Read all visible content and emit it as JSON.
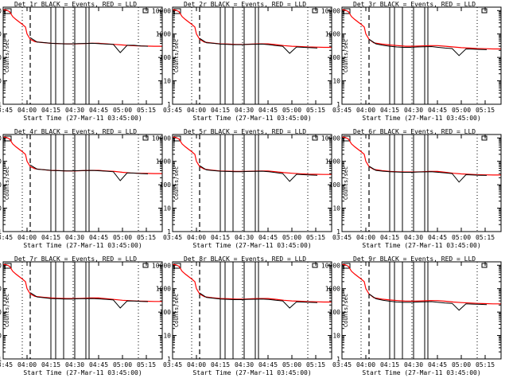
{
  "page": {
    "background": "#ffffff",
    "axis_color": "#000000",
    "events_color": "#000000",
    "lld_color": "#ff0000"
  },
  "common": {
    "ylabel": "Counts/sec",
    "xlabel": "Start Time (27-Mar-11 03:45:00)",
    "x_tick_labels": [
      "03:45",
      "04:00",
      "04:15",
      "04:30",
      "04:45",
      "05:00",
      "05:15"
    ],
    "y_tick_labels": [
      "1",
      "10",
      "100",
      "1000",
      "10000"
    ],
    "x_ticks_min": [
      0,
      15,
      30,
      45,
      60,
      75,
      90
    ],
    "y_ticks": [
      1,
      10,
      100,
      1000,
      10000
    ],
    "xlim_min": [
      0,
      100
    ],
    "ylim": [
      1,
      14000
    ],
    "y_scale": "log",
    "time_minutes": [
      0,
      2,
      4,
      6,
      8,
      10,
      12,
      14,
      15,
      17,
      20,
      25,
      30,
      35,
      40,
      45,
      50,
      55,
      60,
      65,
      70,
      75,
      80,
      85,
      90,
      95,
      100
    ],
    "lld_curve": [
      11000,
      10500,
      9000,
      5500,
      4200,
      3300,
      2600,
      2000,
      1000,
      600,
      470,
      430,
      400,
      390,
      380,
      380,
      390,
      400,
      400,
      380,
      360,
      340,
      320,
      310,
      305,
      300,
      300
    ],
    "vertical_lines_min": {
      "dotted": [
        12,
        44,
        85
      ],
      "dashed": [
        17
      ],
      "solid": [
        30,
        33,
        38,
        45,
        52,
        54
      ]
    }
  },
  "chart_data": [
    {
      "type": "line",
      "title": "Det 1r BLACK = Events, RED = LLD",
      "series": [
        {
          "name": "Events",
          "start_min": 17,
          "values": [
            700,
            450,
            430,
            400,
            390,
            380,
            380,
            390,
            395,
            400,
            385,
            370,
            360,
            160,
            330,
            330,
            310,
            300
          ]
        },
        {
          "name": "LLD",
          "start_min": 0,
          "values": [
            11000,
            10500,
            9000,
            5500,
            4200,
            3300,
            2600,
            2000,
            1000,
            600,
            470,
            430,
            400,
            390,
            380,
            380,
            390,
            400,
            400,
            380,
            360,
            340,
            320,
            310,
            305,
            300,
            300
          ]
        }
      ]
    },
    {
      "type": "line",
      "title": "Det 2r BLACK = Events, RED = LLD",
      "series": [
        {
          "name": "Events",
          "start_min": 17,
          "values": [
            650,
            420,
            400,
            370,
            360,
            350,
            350,
            360,
            365,
            370,
            350,
            320,
            300,
            150,
            280,
            270,
            260,
            250
          ]
        },
        {
          "name": "LLD",
          "start_min": 0,
          "values": [
            11000,
            10500,
            9000,
            5500,
            4200,
            3300,
            2600,
            2000,
            1000,
            600,
            450,
            410,
            380,
            370,
            360,
            360,
            370,
            380,
            380,
            350,
            320,
            300,
            290,
            280,
            275,
            270,
            270
          ]
        }
      ]
    },
    {
      "type": "line",
      "title": "Det 3r BLACK = Events, RED = LLD",
      "series": [
        {
          "name": "Events",
          "start_min": 17,
          "values": [
            600,
            380,
            330,
            300,
            280,
            270,
            270,
            280,
            285,
            290,
            270,
            250,
            240,
            120,
            230,
            225,
            220,
            215
          ]
        },
        {
          "name": "LLD",
          "start_min": 0,
          "values": [
            11000,
            10500,
            9000,
            5500,
            4200,
            3300,
            2600,
            2000,
            1000,
            600,
            420,
            370,
            340,
            320,
            300,
            300,
            310,
            320,
            320,
            300,
            280,
            260,
            250,
            240,
            235,
            230,
            230
          ]
        }
      ]
    },
    {
      "type": "line",
      "title": "Det 4r BLACK = Events, RED = LLD",
      "series": [
        {
          "name": "Events",
          "start_min": 17,
          "values": [
            700,
            460,
            440,
            410,
            400,
            390,
            390,
            400,
            405,
            410,
            395,
            380,
            360,
            150,
            320,
            315,
            300,
            290
          ]
        },
        {
          "name": "LLD",
          "start_min": 0,
          "values": [
            11000,
            10500,
            9000,
            5500,
            4200,
            3300,
            2600,
            2000,
            1000,
            600,
            480,
            440,
            410,
            400,
            390,
            390,
            400,
            410,
            410,
            390,
            370,
            340,
            320,
            310,
            305,
            300,
            300
          ]
        }
      ]
    },
    {
      "type": "line",
      "title": "Det 5r BLACK = Events, RED = LLD",
      "series": [
        {
          "name": "Events",
          "start_min": 17,
          "values": [
            650,
            430,
            400,
            380,
            370,
            360,
            360,
            370,
            375,
            380,
            360,
            330,
            300,
            140,
            280,
            270,
            260,
            255
          ]
        },
        {
          "name": "LLD",
          "start_min": 0,
          "values": [
            11000,
            10500,
            9000,
            5500,
            4200,
            3300,
            2600,
            2000,
            1000,
            600,
            460,
            420,
            390,
            380,
            370,
            370,
            380,
            390,
            390,
            360,
            330,
            310,
            295,
            285,
            280,
            275,
            275
          ]
        }
      ]
    },
    {
      "type": "line",
      "title": "Det 6r BLACK = Events, RED = LLD",
      "series": [
        {
          "name": "Events",
          "start_min": 17,
          "values": [
            620,
            410,
            380,
            360,
            350,
            340,
            340,
            350,
            355,
            360,
            340,
            320,
            300,
            130,
            270,
            260,
            255,
            250
          ]
        },
        {
          "name": "LLD",
          "start_min": 0,
          "values": [
            11000,
            10500,
            9000,
            5500,
            4200,
            3300,
            2600,
            2000,
            1000,
            600,
            450,
            400,
            370,
            360,
            350,
            350,
            360,
            370,
            370,
            340,
            310,
            290,
            280,
            270,
            265,
            260,
            260
          ]
        }
      ]
    },
    {
      "type": "line",
      "title": "Det 7r BLACK = Events, RED = LLD",
      "series": [
        {
          "name": "Events",
          "start_min": 17,
          "values": [
            680,
            440,
            410,
            380,
            370,
            360,
            360,
            370,
            375,
            380,
            365,
            350,
            330,
            150,
            300,
            295,
            285,
            280
          ]
        },
        {
          "name": "LLD",
          "start_min": 0,
          "values": [
            11000,
            10500,
            9000,
            5500,
            4200,
            3300,
            2600,
            2000,
            1000,
            600,
            470,
            430,
            400,
            390,
            380,
            380,
            390,
            400,
            400,
            370,
            345,
            320,
            305,
            295,
            290,
            285,
            285
          ]
        }
      ]
    },
    {
      "type": "line",
      "title": "Det 8r BLACK = Events, RED = LLD",
      "series": [
        {
          "name": "Events",
          "start_min": 17,
          "values": [
            650,
            420,
            390,
            360,
            350,
            340,
            340,
            350,
            355,
            360,
            345,
            320,
            300,
            150,
            275,
            268,
            260,
            255
          ]
        },
        {
          "name": "LLD",
          "start_min": 0,
          "values": [
            11000,
            10500,
            9000,
            5500,
            4200,
            3300,
            2600,
            2000,
            1000,
            600,
            455,
            410,
            380,
            370,
            360,
            360,
            370,
            380,
            380,
            350,
            320,
            300,
            290,
            280,
            275,
            270,
            270
          ]
        }
      ]
    },
    {
      "type": "line",
      "title": "Det 9r BLACK = Events, RED = LLD",
      "series": [
        {
          "name": "Events",
          "start_min": 17,
          "values": [
            600,
            370,
            320,
            290,
            270,
            260,
            260,
            270,
            275,
            280,
            260,
            245,
            235,
            120,
            225,
            220,
            215,
            210
          ]
        },
        {
          "name": "LLD",
          "start_min": 0,
          "values": [
            11000,
            10500,
            9000,
            5500,
            4200,
            3300,
            2600,
            2000,
            1000,
            600,
            410,
            360,
            330,
            310,
            295,
            295,
            300,
            310,
            310,
            290,
            270,
            255,
            245,
            235,
            230,
            225,
            225
          ]
        }
      ]
    }
  ]
}
